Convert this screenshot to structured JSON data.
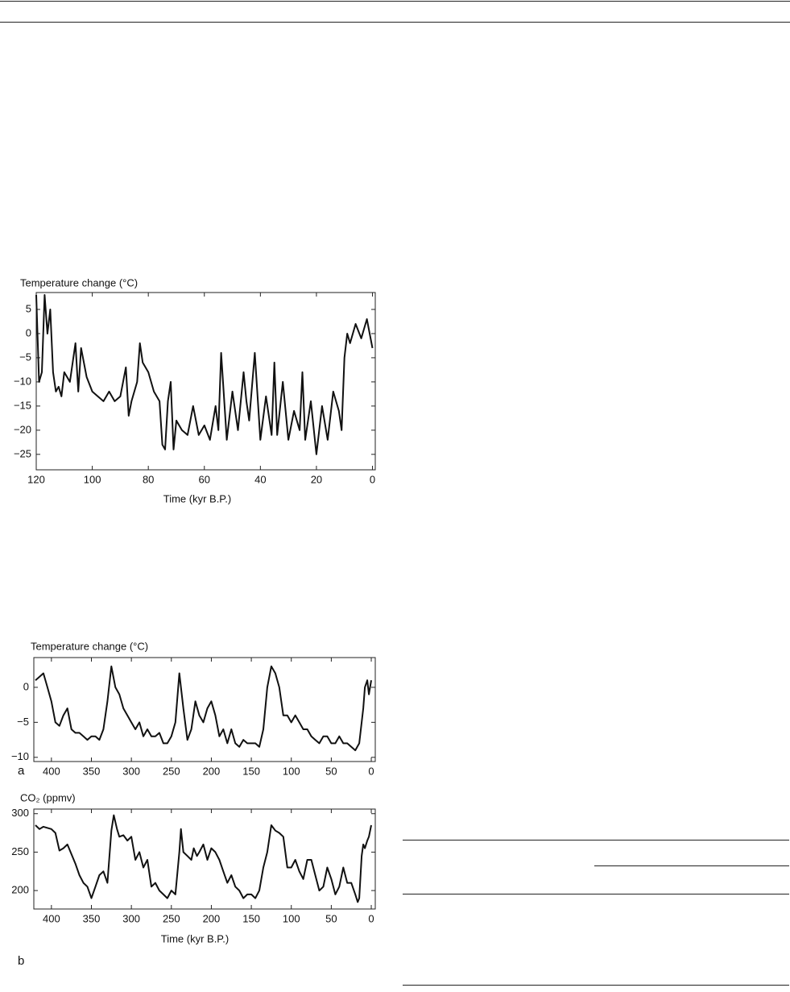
{
  "chart_data": [
    {
      "type": "line",
      "title": "Temperature change (°C)",
      "xlabel": "Time (kyr B.P.)",
      "color": "#111",
      "x": [
        120,
        119,
        118,
        117,
        116,
        115,
        114,
        113,
        112,
        111,
        110,
        108,
        106,
        105,
        104,
        102,
        100,
        98,
        96,
        94,
        92,
        90,
        88,
        87,
        86,
        84,
        83,
        82,
        80,
        78,
        76,
        75,
        74,
        73,
        72,
        71,
        70,
        68,
        66,
        64,
        62,
        60,
        58,
        56,
        55,
        54,
        52,
        50,
        48,
        46,
        45,
        44,
        42,
        40,
        38,
        36,
        35,
        34,
        32,
        30,
        28,
        26,
        25,
        24,
        22,
        20,
        18,
        16,
        14,
        12,
        11,
        10,
        9,
        8,
        6,
        4,
        2,
        0
      ],
      "values": [
        8,
        -10,
        -8,
        8,
        0,
        5,
        -8,
        -12,
        -11,
        -13,
        -8,
        -10,
        -2,
        -12,
        -3,
        -9,
        -12,
        -13,
        -14,
        -12,
        -14,
        -13,
        -7,
        -17,
        -14,
        -10,
        -2,
        -6,
        -8,
        -12,
        -14,
        -23,
        -24,
        -14,
        -10,
        -24,
        -18,
        -20,
        -21,
        -15,
        -21,
        -19,
        -22,
        -15,
        -20,
        -4,
        -22,
        -12,
        -20,
        -8,
        -14,
        -18,
        -4,
        -22,
        -13,
        -21,
        -6,
        -21,
        -10,
        -22,
        -16,
        -20,
        -8,
        -22,
        -14,
        -25,
        -15,
        -22,
        -12,
        -16,
        -20,
        -5,
        0,
        -2,
        2,
        -1,
        3,
        -3
      ],
      "xlim": [
        120,
        -1
      ],
      "ylim": [
        -28.2,
        8.5
      ],
      "xticks": [
        120,
        100,
        80,
        60,
        40,
        20,
        0
      ],
      "yticks": [
        5,
        0,
        {
          "value": -5,
          "label": "−5"
        },
        {
          "value": -10,
          "label": "−10"
        },
        {
          "value": -15,
          "label": "−15"
        },
        {
          "value": -20,
          "label": "−20"
        },
        {
          "value": -25,
          "label": "−25"
        }
      ]
    },
    {
      "type": "line",
      "title": "Temperature change (°C)",
      "panel_label": "a",
      "color": "#111",
      "x": [
        420,
        415,
        410,
        405,
        400,
        395,
        390,
        385,
        380,
        375,
        370,
        365,
        360,
        355,
        350,
        345,
        340,
        335,
        330,
        325,
        320,
        315,
        310,
        305,
        300,
        295,
        290,
        285,
        280,
        275,
        270,
        265,
        260,
        255,
        250,
        245,
        240,
        235,
        230,
        225,
        220,
        215,
        210,
        205,
        200,
        195,
        190,
        185,
        180,
        175,
        170,
        165,
        160,
        155,
        150,
        145,
        140,
        135,
        130,
        125,
        120,
        115,
        110,
        105,
        100,
        95,
        90,
        85,
        80,
        75,
        70,
        65,
        60,
        55,
        50,
        45,
        40,
        35,
        30,
        25,
        20,
        15,
        10,
        8,
        5,
        3,
        0
      ],
      "values": [
        1,
        1.5,
        2,
        0,
        -2,
        -5,
        -5.5,
        -4,
        -3,
        -6,
        -6.5,
        -6.5,
        -7,
        -7.5,
        -7,
        -7,
        -7.5,
        -6,
        -2,
        3,
        0,
        -1,
        -3,
        -4,
        -5,
        -6,
        -5,
        -7,
        -6,
        -7,
        -7,
        -6.5,
        -8,
        -8,
        -7,
        -5,
        2,
        -3,
        -7.5,
        -6,
        -2,
        -4,
        -5,
        -3,
        -2,
        -4,
        -7,
        -6,
        -8,
        -6,
        -8,
        -8.5,
        -7.5,
        -8,
        -8,
        -8,
        -8.5,
        -6,
        0,
        3,
        2,
        0,
        -4,
        -4,
        -5,
        -4,
        -5,
        -6,
        -6,
        -7,
        -7.5,
        -8,
        -7,
        -7,
        -8,
        -8,
        -7,
        -8,
        -8,
        -8.5,
        -9,
        -8,
        -3,
        0,
        1,
        -1,
        1
      ],
      "xlim": [
        422,
        -5
      ],
      "ylim": [
        -10.6,
        4.25
      ],
      "xticks": [
        400,
        350,
        300,
        250,
        200,
        150,
        100,
        50,
        0
      ],
      "yticks": [
        0,
        {
          "value": -5,
          "label": "−5"
        },
        {
          "value": -10,
          "label": "−10"
        }
      ]
    },
    {
      "type": "line",
      "title": "CO₂ (ppmv)",
      "xlabel": "Time (kyr B.P.)",
      "panel_label": "b",
      "color": "#111",
      "x": [
        420,
        415,
        410,
        400,
        395,
        390,
        385,
        380,
        370,
        365,
        360,
        355,
        350,
        345,
        340,
        335,
        330,
        325,
        322,
        318,
        315,
        310,
        305,
        300,
        295,
        290,
        285,
        280,
        275,
        270,
        265,
        260,
        255,
        250,
        245,
        240,
        238,
        235,
        230,
        225,
        222,
        218,
        215,
        210,
        205,
        200,
        195,
        190,
        185,
        180,
        175,
        170,
        165,
        160,
        155,
        150,
        145,
        140,
        135,
        130,
        125,
        120,
        115,
        110,
        105,
        100,
        95,
        90,
        85,
        80,
        75,
        70,
        65,
        60,
        55,
        50,
        45,
        40,
        35,
        30,
        25,
        20,
        17,
        15,
        12,
        10,
        8,
        5,
        3,
        0
      ],
      "values": [
        285,
        280,
        283,
        280,
        275,
        252,
        255,
        260,
        235,
        220,
        210,
        205,
        190,
        205,
        220,
        225,
        210,
        278,
        298,
        280,
        270,
        272,
        265,
        270,
        240,
        250,
        230,
        240,
        205,
        210,
        200,
        195,
        190,
        200,
        195,
        250,
        280,
        250,
        245,
        240,
        255,
        245,
        250,
        260,
        240,
        255,
        250,
        240,
        225,
        210,
        220,
        205,
        200,
        190,
        195,
        195,
        190,
        200,
        230,
        250,
        285,
        278,
        275,
        270,
        230,
        230,
        240,
        225,
        215,
        240,
        240,
        220,
        200,
        205,
        230,
        215,
        195,
        205,
        230,
        210,
        210,
        195,
        185,
        190,
        245,
        260,
        255,
        265,
        270,
        285
      ],
      "xlim": [
        422,
        -5
      ],
      "ylim": [
        176,
        306
      ],
      "xticks": [
        400,
        350,
        300,
        250,
        200,
        150,
        100,
        50,
        0
      ],
      "yticks": [
        300,
        250,
        200
      ]
    }
  ]
}
